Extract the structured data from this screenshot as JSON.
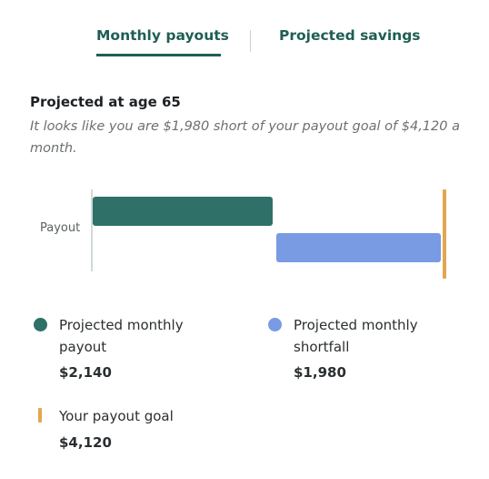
{
  "tabs": [
    {
      "label": "Monthly payouts",
      "active": true
    },
    {
      "label": "Projected savings",
      "active": false
    }
  ],
  "heading": "Projected at age 65",
  "summary": "It looks like you are $1,980 short of your payout goal of $4,120 a month.",
  "chart_data": {
    "type": "bar",
    "orientation": "horizontal",
    "categories": [
      "Payout"
    ],
    "series": [
      {
        "name": "Projected monthly payout",
        "values": [
          2140
        ],
        "color": "#2f7068",
        "offset": 0
      },
      {
        "name": "Projected monthly shortfall",
        "values": [
          1980
        ],
        "color": "#789be4",
        "offset": 2140
      }
    ],
    "goal": 4120,
    "goal_color": "#e2a74e",
    "xlim": [
      0,
      4120
    ]
  },
  "legend": {
    "payout": {
      "label_line1": "Projected monthly",
      "label_line2": "payout",
      "value": "$2,140",
      "color": "#2f7068",
      "icon": "filled-circle"
    },
    "shortfall": {
      "label_line1": "Projected monthly",
      "label_line2": "shortfall",
      "value": "$1,980",
      "color": "#789be4",
      "icon": "filled-circle"
    },
    "goal": {
      "label": "Your payout goal",
      "value": "$4,120",
      "color": "#e2a74e",
      "icon": "vertical-bar"
    }
  }
}
